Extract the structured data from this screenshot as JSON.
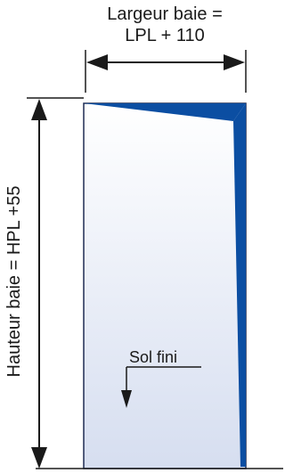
{
  "labels": {
    "width_line1": "Largeur baie =",
    "width_line2": "LPL + 110",
    "height": "Hauteur baie = HPL +55",
    "floor": "Sol fini"
  },
  "colors": {
    "line": "#1a1a1a",
    "panel_fill_top": "#ffffff",
    "panel_fill_bottom": "#d6def0",
    "panel_outline": "#1f2b52",
    "leaf_blue": "#0b4ea2"
  }
}
